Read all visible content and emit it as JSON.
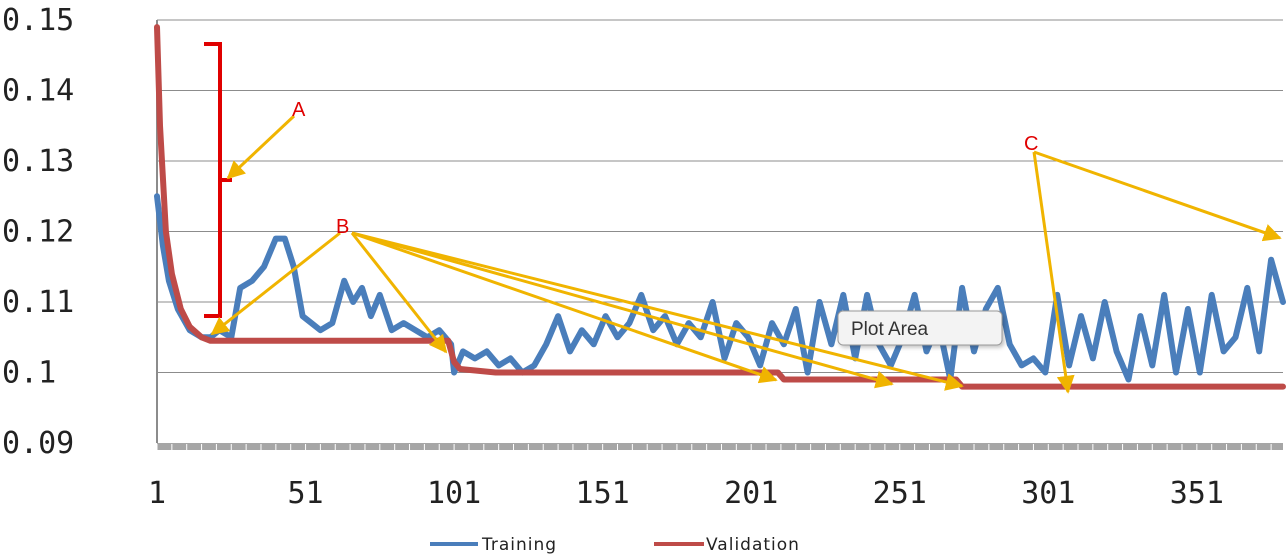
{
  "chart_data": {
    "type": "line",
    "title": "",
    "xlabel": "",
    "ylabel": "",
    "ylim": [
      0.09,
      0.15
    ],
    "xlim": [
      1,
      380
    ],
    "grid": true,
    "legend_position": "bottom",
    "x_ticks": [
      "1",
      "51",
      "101",
      "151",
      "201",
      "251",
      "301",
      "351"
    ],
    "y_ticks": [
      "0.15",
      "0.14",
      "0.13",
      "0.12",
      "0.11",
      "0.1",
      "0.09"
    ],
    "series": [
      {
        "name": "Training",
        "color": "#4a7ebb",
        "x": [
          1,
          3,
          5,
          8,
          12,
          16,
          19,
          22,
          26,
          29,
          33,
          37,
          41,
          44,
          47,
          50,
          53,
          56,
          60,
          64,
          67,
          70,
          73,
          76,
          80,
          84,
          88,
          92,
          96,
          100,
          101,
          104,
          108,
          112,
          116,
          120,
          124,
          128,
          132,
          136,
          140,
          144,
          148,
          152,
          156,
          160,
          164,
          168,
          172,
          176,
          180,
          184,
          188,
          192,
          196,
          200,
          204,
          208,
          212,
          216,
          220,
          224,
          228,
          232,
          236,
          240,
          244,
          248,
          252,
          256,
          260,
          264,
          268,
          272,
          276,
          280,
          284,
          288,
          292,
          296,
          300,
          304,
          308,
          312,
          316,
          320,
          324,
          328,
          332,
          336,
          340,
          344,
          348,
          352,
          356,
          360,
          364,
          368,
          372,
          376,
          380
        ],
        "y": [
          0.125,
          0.118,
          0.113,
          0.109,
          0.106,
          0.105,
          0.105,
          0.106,
          0.105,
          0.112,
          0.113,
          0.115,
          0.119,
          0.119,
          0.115,
          0.108,
          0.107,
          0.106,
          0.107,
          0.113,
          0.11,
          0.112,
          0.108,
          0.111,
          0.106,
          0.107,
          0.106,
          0.105,
          0.106,
          0.104,
          0.1,
          0.103,
          0.102,
          0.103,
          0.101,
          0.102,
          0.1,
          0.101,
          0.104,
          0.108,
          0.103,
          0.106,
          0.104,
          0.108,
          0.105,
          0.107,
          0.111,
          0.106,
          0.108,
          0.104,
          0.107,
          0.105,
          0.11,
          0.102,
          0.107,
          0.105,
          0.101,
          0.107,
          0.104,
          0.109,
          0.1,
          0.11,
          0.104,
          0.111,
          0.102,
          0.111,
          0.104,
          0.101,
          0.105,
          0.111,
          0.103,
          0.107,
          0.099,
          0.112,
          0.103,
          0.109,
          0.112,
          0.104,
          0.101,
          0.102,
          0.1,
          0.111,
          0.101,
          0.108,
          0.102,
          0.11,
          0.103,
          0.099,
          0.108,
          0.101,
          0.111,
          0.1,
          0.109,
          0.1,
          0.111,
          0.103,
          0.105,
          0.112,
          0.103,
          0.116,
          0.11
        ]
      },
      {
        "name": "Validation",
        "color": "#be4b48",
        "x": [
          1,
          2,
          4,
          6,
          9,
          12,
          16,
          19,
          22,
          40,
          60,
          99,
          101,
          103,
          115,
          210,
          212,
          270,
          272,
          380
        ],
        "y": [
          0.149,
          0.135,
          0.12,
          0.114,
          0.109,
          0.1065,
          0.105,
          0.1045,
          0.1045,
          0.1045,
          0.1045,
          0.1045,
          0.1015,
          0.1005,
          0.1,
          0.1,
          0.099,
          0.099,
          0.098,
          0.098
        ]
      }
    ],
    "annotations": [
      {
        "label": "A",
        "color": "#e00000"
      },
      {
        "label": "B",
        "color": "#e00000"
      },
      {
        "label": "C",
        "color": "#e00000"
      }
    ],
    "arrow_color": "#f0b400",
    "bracket_color": "#e00000",
    "tooltip": "Plot Area"
  }
}
